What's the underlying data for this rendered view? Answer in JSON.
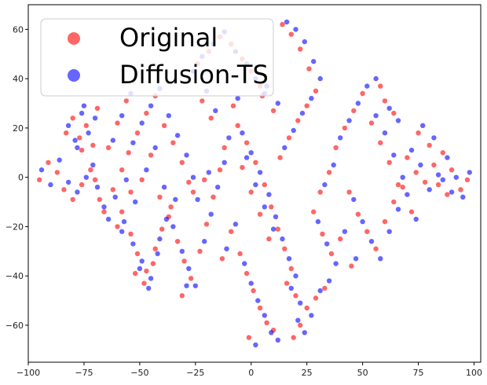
{
  "chart_data": {
    "type": "scatter",
    "title": "",
    "xlabel": "",
    "ylabel": "",
    "xlim": [
      -100,
      103
    ],
    "ylim": [
      -75,
      70
    ],
    "grid": false,
    "legend_position": "top-left",
    "x_ticks": [
      -100,
      -75,
      -50,
      -25,
      0,
      25,
      50,
      75,
      100
    ],
    "y_ticks": [
      -60,
      -40,
      -20,
      0,
      20,
      40,
      60
    ],
    "marker_alpha": 0.6,
    "series": [
      {
        "name": "Original",
        "color": "#ff0000",
        "points": [
          [
            -95,
            -1
          ],
          [
            -91,
            6
          ],
          [
            -87,
            2
          ],
          [
            -84,
            -5
          ],
          [
            -80,
            -9
          ],
          [
            -76,
            -3
          ],
          [
            -72,
            3
          ],
          [
            -70,
            -1
          ],
          [
            -83,
            18
          ],
          [
            -80,
            24
          ],
          [
            -77,
            16
          ],
          [
            -74,
            21
          ],
          [
            -71,
            13
          ],
          [
            -69,
            28
          ],
          [
            -76,
            11
          ],
          [
            -62,
            -5
          ],
          [
            -58,
            -14
          ],
          [
            -54,
            -23
          ],
          [
            -51,
            -31
          ],
          [
            -47,
            -38
          ],
          [
            -43,
            -29
          ],
          [
            -40,
            -21
          ],
          [
            -36,
            -12
          ],
          [
            -55,
            10
          ],
          [
            -51,
            18
          ],
          [
            -47,
            26
          ],
          [
            -43,
            33
          ],
          [
            -39,
            21
          ],
          [
            -35,
            14
          ],
          [
            -31,
            6
          ],
          [
            -28,
            -2
          ],
          [
            -58,
            3
          ],
          [
            -54,
            -6
          ],
          [
            -49,
            -1
          ],
          [
            -45,
            9
          ],
          [
            -41,
            -8
          ],
          [
            -37,
            -16
          ],
          [
            -33,
            -26
          ],
          [
            -30,
            -34
          ],
          [
            -27,
            -41
          ],
          [
            -23,
            -30
          ],
          [
            -20,
            -19
          ],
          [
            -17,
            -8
          ],
          [
            -14,
            3
          ],
          [
            -12,
            12
          ],
          [
            -18,
            24
          ],
          [
            -22,
            31
          ],
          [
            -28,
            40
          ],
          [
            -24,
            46
          ],
          [
            -19,
            51
          ],
          [
            -14,
            57
          ],
          [
            -9,
            54
          ],
          [
            -4,
            48
          ],
          [
            0,
            43
          ],
          [
            4,
            37
          ],
          [
            -6,
            21
          ],
          [
            -2,
            14
          ],
          [
            2,
            6
          ],
          [
            6,
            -3
          ],
          [
            9,
            -12
          ],
          [
            12,
            -21
          ],
          [
            15,
            -29
          ],
          [
            18,
            -37
          ],
          [
            -5,
            -31
          ],
          [
            -2,
            -39
          ],
          [
            1,
            -46
          ],
          [
            4,
            -53
          ],
          [
            7,
            -59
          ],
          [
            10,
            -62
          ],
          [
            -1,
            -65
          ],
          [
            13,
            8
          ],
          [
            17,
            16
          ],
          [
            21,
            23
          ],
          [
            25,
            29
          ],
          [
            29,
            35
          ],
          [
            26,
            44
          ],
          [
            22,
            52
          ],
          [
            18,
            58
          ],
          [
            14,
            62
          ],
          [
            28,
            -14
          ],
          [
            32,
            -23
          ],
          [
            36,
            -31
          ],
          [
            33,
            -45
          ],
          [
            29,
            -49
          ],
          [
            25,
            -53
          ],
          [
            22,
            -60
          ],
          [
            19,
            -65
          ],
          [
            38,
            12
          ],
          [
            42,
            20
          ],
          [
            46,
            27
          ],
          [
            50,
            34
          ],
          [
            54,
            22
          ],
          [
            58,
            14
          ],
          [
            62,
            6
          ],
          [
            66,
            -3
          ],
          [
            44,
            -6
          ],
          [
            48,
            -15
          ],
          [
            52,
            -22
          ],
          [
            56,
            -29
          ],
          [
            60,
            -18
          ],
          [
            64,
            -10
          ],
          [
            68,
            -4
          ],
          [
            72,
            -14
          ],
          [
            70,
            8
          ],
          [
            74,
            2
          ],
          [
            78,
            -2
          ],
          [
            82,
            5
          ],
          [
            86,
            10
          ],
          [
            90,
            3
          ],
          [
            94,
            -5
          ],
          [
            97,
            -1
          ],
          [
            75,
            18
          ],
          [
            80,
            13
          ],
          [
            84,
            -3
          ],
          [
            88,
            -7
          ],
          [
            60,
            31
          ],
          [
            64,
            26
          ],
          [
            58,
            37
          ],
          [
            -68,
            -9
          ],
          [
            -64,
            12
          ],
          [
            -60,
            22
          ],
          [
            -56,
            31
          ],
          [
            -52,
            -39
          ],
          [
            -48,
            -43
          ],
          [
            -44,
            -35
          ],
          [
            -9,
            -22
          ],
          [
            -13,
            -33
          ],
          [
            8,
            -25
          ],
          [
            4,
            -15
          ],
          [
            0,
            -6
          ],
          [
            -4,
            4
          ],
          [
            -8,
            29
          ],
          [
            10,
            27
          ],
          [
            5,
            33
          ],
          [
            31,
            -6
          ],
          [
            35,
            2
          ],
          [
            40,
            -25
          ],
          [
            45,
            -36
          ],
          [
            16,
            -43
          ],
          [
            20,
            -48
          ],
          [
            -31,
            -48
          ],
          [
            -26,
            -6
          ],
          [
            -21,
            -1
          ],
          [
            -60,
            -20
          ],
          [
            -66,
            -14
          ]
        ]
      },
      {
        "name": "Diffusion-TS",
        "color": "#0000ff",
        "points": [
          [
            -94,
            3
          ],
          [
            -90,
            -3
          ],
          [
            -86,
            7
          ],
          [
            -82,
            -2
          ],
          [
            -78,
            -6
          ],
          [
            -74,
            0
          ],
          [
            -71,
            5
          ],
          [
            -69,
            -4
          ],
          [
            -82,
            21
          ],
          [
            -79,
            15
          ],
          [
            -76,
            26
          ],
          [
            -73,
            18
          ],
          [
            -70,
            24
          ],
          [
            -75,
            29
          ],
          [
            -78,
            12
          ],
          [
            -61,
            -8
          ],
          [
            -57,
            -18
          ],
          [
            -53,
            -27
          ],
          [
            -49,
            -34
          ],
          [
            -45,
            -41
          ],
          [
            -41,
            -25
          ],
          [
            -38,
            -17
          ],
          [
            -34,
            -9
          ],
          [
            -53,
            14
          ],
          [
            -49,
            22
          ],
          [
            -45,
            29
          ],
          [
            -41,
            36
          ],
          [
            -37,
            25
          ],
          [
            -33,
            17
          ],
          [
            -29,
            9
          ],
          [
            -26,
            0
          ],
          [
            -56,
            -1
          ],
          [
            -52,
            -10
          ],
          [
            -47,
            3
          ],
          [
            -43,
            12
          ],
          [
            -39,
            -4
          ],
          [
            -35,
            -20
          ],
          [
            -31,
            -30
          ],
          [
            -28,
            -37
          ],
          [
            -25,
            -44
          ],
          [
            -21,
            -26
          ],
          [
            -18,
            -15
          ],
          [
            -15,
            -4
          ],
          [
            -12,
            6
          ],
          [
            -10,
            16
          ],
          [
            -16,
            27
          ],
          [
            -20,
            35
          ],
          [
            -26,
            43
          ],
          [
            -22,
            49
          ],
          [
            -17,
            54
          ],
          [
            -12,
            59
          ],
          [
            -7,
            51
          ],
          [
            -2,
            46
          ],
          [
            2,
            40
          ],
          [
            6,
            34
          ],
          [
            -4,
            18
          ],
          [
            0,
            10
          ],
          [
            4,
            2
          ],
          [
            8,
            -7
          ],
          [
            11,
            -16
          ],
          [
            14,
            -25
          ],
          [
            17,
            -33
          ],
          [
            20,
            -40
          ],
          [
            -3,
            -35
          ],
          [
            0,
            -43
          ],
          [
            3,
            -50
          ],
          [
            6,
            -56
          ],
          [
            9,
            -63
          ],
          [
            12,
            -66
          ],
          [
            2,
            -68
          ],
          [
            15,
            12
          ],
          [
            19,
            19
          ],
          [
            23,
            26
          ],
          [
            27,
            32
          ],
          [
            31,
            40
          ],
          [
            28,
            47
          ],
          [
            24,
            55
          ],
          [
            20,
            60
          ],
          [
            16,
            63
          ],
          [
            30,
            -18
          ],
          [
            34,
            -27
          ],
          [
            38,
            -35
          ],
          [
            35,
            -42
          ],
          [
            31,
            -46
          ],
          [
            27,
            -56
          ],
          [
            24,
            -63
          ],
          [
            21,
            -58
          ],
          [
            40,
            16
          ],
          [
            44,
            23
          ],
          [
            48,
            30
          ],
          [
            52,
            37
          ],
          [
            56,
            25
          ],
          [
            60,
            18
          ],
          [
            64,
            9
          ],
          [
            68,
            0
          ],
          [
            46,
            -9
          ],
          [
            50,
            -18
          ],
          [
            54,
            -26
          ],
          [
            58,
            -33
          ],
          [
            62,
            -22
          ],
          [
            66,
            -13
          ],
          [
            70,
            -7
          ],
          [
            74,
            -17
          ],
          [
            72,
            11
          ],
          [
            76,
            5
          ],
          [
            80,
            -5
          ],
          [
            84,
            1
          ],
          [
            88,
            8
          ],
          [
            92,
            0
          ],
          [
            95,
            -8
          ],
          [
            98,
            2
          ],
          [
            77,
            21
          ],
          [
            82,
            16
          ],
          [
            86,
            -1
          ],
          [
            90,
            -6
          ],
          [
            62,
            28
          ],
          [
            66,
            23
          ],
          [
            56,
            40
          ],
          [
            -66,
            -12
          ],
          [
            -62,
            15
          ],
          [
            -58,
            25
          ],
          [
            -54,
            34
          ],
          [
            -50,
            -37
          ],
          [
            -46,
            -45
          ],
          [
            -42,
            -31
          ],
          [
            -7,
            -19
          ],
          [
            -11,
            -29
          ],
          [
            10,
            -21
          ],
          [
            6,
            -12
          ],
          [
            2,
            -3
          ],
          [
            -2,
            8
          ],
          [
            -6,
            32
          ],
          [
            12,
            30
          ],
          [
            7,
            37
          ],
          [
            33,
            -3
          ],
          [
            37,
            5
          ],
          [
            42,
            -22
          ],
          [
            47,
            -33
          ],
          [
            18,
            -45
          ],
          [
            22,
            -51
          ],
          [
            -29,
            -44
          ],
          [
            -24,
            -9
          ],
          [
            -19,
            2
          ],
          [
            -58,
            -22
          ],
          [
            -64,
            -17
          ]
        ]
      }
    ]
  }
}
